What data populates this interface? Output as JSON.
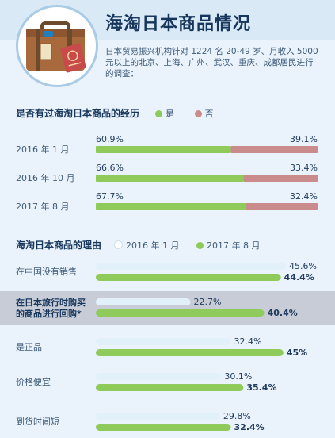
{
  "title": "海淘日本商品情况",
  "intro": "日本贸易振兴机构针对 1224 名 20-49 岁、月收入 5000 元以上的北京、上海、广州、武汉、重庆、成都居民进行的调查：",
  "colors": {
    "green": "#8fcb5a",
    "rose": "#c98b8b",
    "lightblue": "#e2f0fa",
    "navy": "#16365c"
  },
  "icons": {
    "illustration": "suitcase-with-passport-icon"
  },
  "chart_data": [
    {
      "type": "bar",
      "stacked": true,
      "orientation": "horizontal",
      "title": "是否有过海淘日本商品的经历",
      "legend": [
        "是",
        "否"
      ],
      "categories": [
        "2016 年 1 月",
        "2016 年 10 月",
        "2017 年 8 月"
      ],
      "series": [
        {
          "name": "是",
          "values": [
            60.9,
            66.6,
            67.7
          ],
          "labels": [
            "60.9%",
            "66.6%",
            "67.7%"
          ],
          "color": "#8fcb5a"
        },
        {
          "name": "否",
          "values": [
            39.1,
            33.4,
            32.4
          ],
          "labels": [
            "39.1%",
            "33.4%",
            "32.4%"
          ],
          "color": "#c98b8b"
        }
      ],
      "xlim": [
        0,
        100
      ]
    },
    {
      "type": "bar",
      "orientation": "horizontal",
      "title": "海淘日本商品的理由",
      "legend": [
        "2016 年 1 月",
        "2017 年 8 月"
      ],
      "categories": [
        "在中国没有销售",
        "在日本旅行时购买的商品进行回购*",
        "是正品",
        "价格便宜",
        "到货时间短"
      ],
      "category_lines": [
        [
          "在中国没有销售"
        ],
        [
          "在日本旅行时购买",
          "的商品进行回购*"
        ],
        [
          "是正品"
        ],
        [
          "价格便宜"
        ],
        [
          "到货时间短"
        ]
      ],
      "series": [
        {
          "name": "2016 年 1 月",
          "values": [
            45.6,
            22.7,
            32.4,
            30.1,
            29.8
          ],
          "labels": [
            "45.6%",
            "22.7%",
            "32.4%",
            "30.1%",
            "29.8%"
          ],
          "color": "#e2f0fa"
        },
        {
          "name": "2017 年 8 月",
          "values": [
            44.4,
            40.4,
            45,
            35.4,
            32.4
          ],
          "labels": [
            "44.4%",
            "40.4%",
            "45%",
            "35.4%",
            "32.4%"
          ],
          "color": "#8fcb5a"
        }
      ],
      "highlight_category": "在日本旅行时购买的商品进行回购*",
      "xlim": [
        0,
        50
      ]
    }
  ]
}
